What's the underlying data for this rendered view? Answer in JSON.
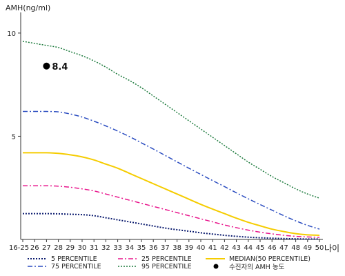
{
  "chart_data": {
    "type": "line",
    "ylabel": "AMH(ng/ml)",
    "xlabel_unit": "나이",
    "ylim": [
      0,
      11
    ],
    "yticks": [
      5,
      10
    ],
    "x": [
      "16-25",
      "26",
      "27",
      "28",
      "29",
      "30",
      "31",
      "32",
      "33",
      "34",
      "35",
      "36",
      "37",
      "38",
      "39",
      "40",
      "41",
      "42",
      "43",
      "44",
      "45",
      "46",
      "47",
      "48",
      "49",
      "50"
    ],
    "series": [
      {
        "name": "5 PERCENTILE",
        "color": "#0a1a6e",
        "dash": "2,2",
        "width": 2,
        "values": [
          1.25,
          1.25,
          1.25,
          1.24,
          1.22,
          1.2,
          1.15,
          1.05,
          0.95,
          0.85,
          0.75,
          0.65,
          0.55,
          0.47,
          0.4,
          0.32,
          0.26,
          0.2,
          0.15,
          0.11,
          0.08,
          0.06,
          0.04,
          0.03,
          0.02,
          0.02
        ]
      },
      {
        "name": "25 PERCENTILE",
        "color": "#e8158c",
        "dash": "7,3,2,3",
        "width": 1.5,
        "values": [
          2.6,
          2.6,
          2.6,
          2.58,
          2.53,
          2.45,
          2.35,
          2.2,
          2.05,
          1.9,
          1.75,
          1.6,
          1.45,
          1.3,
          1.15,
          1.0,
          0.85,
          0.7,
          0.57,
          0.45,
          0.35,
          0.27,
          0.2,
          0.15,
          0.12,
          0.1
        ]
      },
      {
        "name": "MEDIAN(50 PERCENTILE)",
        "color": "#f5cc00",
        "dash": "",
        "width": 2,
        "values": [
          4.2,
          4.2,
          4.2,
          4.17,
          4.1,
          4.0,
          3.85,
          3.65,
          3.45,
          3.2,
          2.95,
          2.7,
          2.45,
          2.2,
          1.95,
          1.7,
          1.47,
          1.25,
          1.03,
          0.83,
          0.66,
          0.5,
          0.38,
          0.28,
          0.22,
          0.2
        ]
      },
      {
        "name": "75 PERCENTILE",
        "color": "#2a4cc0",
        "dash": "7,3,2,3",
        "width": 1.5,
        "values": [
          6.2,
          6.2,
          6.2,
          6.18,
          6.08,
          5.93,
          5.73,
          5.5,
          5.25,
          4.98,
          4.68,
          4.38,
          4.07,
          3.76,
          3.45,
          3.15,
          2.85,
          2.56,
          2.26,
          1.97,
          1.69,
          1.42,
          1.15,
          0.9,
          0.68,
          0.5
        ]
      },
      {
        "name": "95 PERCENTILE",
        "color": "#1c7a3c",
        "dash": "2,2",
        "width": 1.5,
        "values": [
          9.6,
          9.5,
          9.4,
          9.3,
          9.1,
          8.9,
          8.65,
          8.35,
          8.0,
          7.7,
          7.35,
          6.95,
          6.55,
          6.15,
          5.75,
          5.35,
          4.95,
          4.55,
          4.15,
          3.75,
          3.4,
          3.05,
          2.75,
          2.45,
          2.2,
          2.0
        ]
      }
    ],
    "point": {
      "x": "27",
      "y": 8.4,
      "label": "8.4",
      "legend": "수진자의 AMH 농도"
    }
  }
}
